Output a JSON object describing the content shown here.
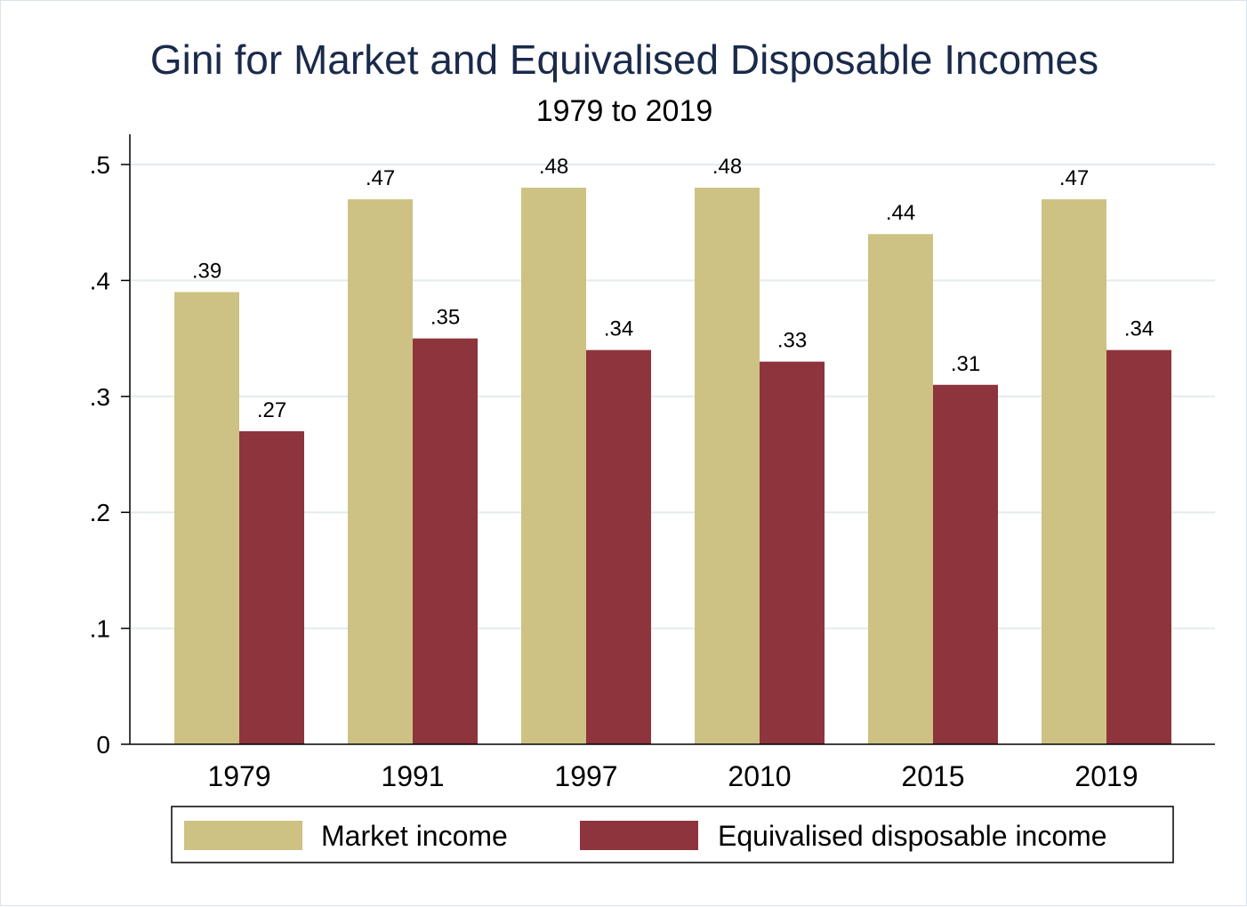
{
  "chart_data": {
    "type": "bar",
    "title": "Gini for Market and Equivalised Disposable Incomes",
    "subtitle": "1979 to 2019",
    "categories": [
      "1979",
      "1991",
      "1997",
      "2010",
      "2015",
      "2019"
    ],
    "series": [
      {
        "name": "Market income",
        "color": "#cdc283",
        "values": [
          0.39,
          0.47,
          0.48,
          0.48,
          0.44,
          0.47
        ],
        "labels": [
          ".39",
          ".47",
          ".48",
          ".48",
          ".44",
          ".47"
        ]
      },
      {
        "name": "Equivalised disposable income",
        "color": "#8e343c",
        "values": [
          0.27,
          0.35,
          0.34,
          0.33,
          0.31,
          0.34
        ],
        "labels": [
          ".27",
          ".35",
          ".34",
          ".33",
          ".31",
          ".34"
        ]
      }
    ],
    "yticks": [
      0,
      0.1,
      0.2,
      0.3,
      0.4,
      0.5
    ],
    "ytick_labels": [
      "0",
      ".1",
      ".2",
      ".3",
      ".4",
      ".5"
    ],
    "ylim": [
      0,
      0.5
    ],
    "xlabel": "",
    "ylabel": "",
    "grid": true,
    "legend_position": "bottom"
  }
}
